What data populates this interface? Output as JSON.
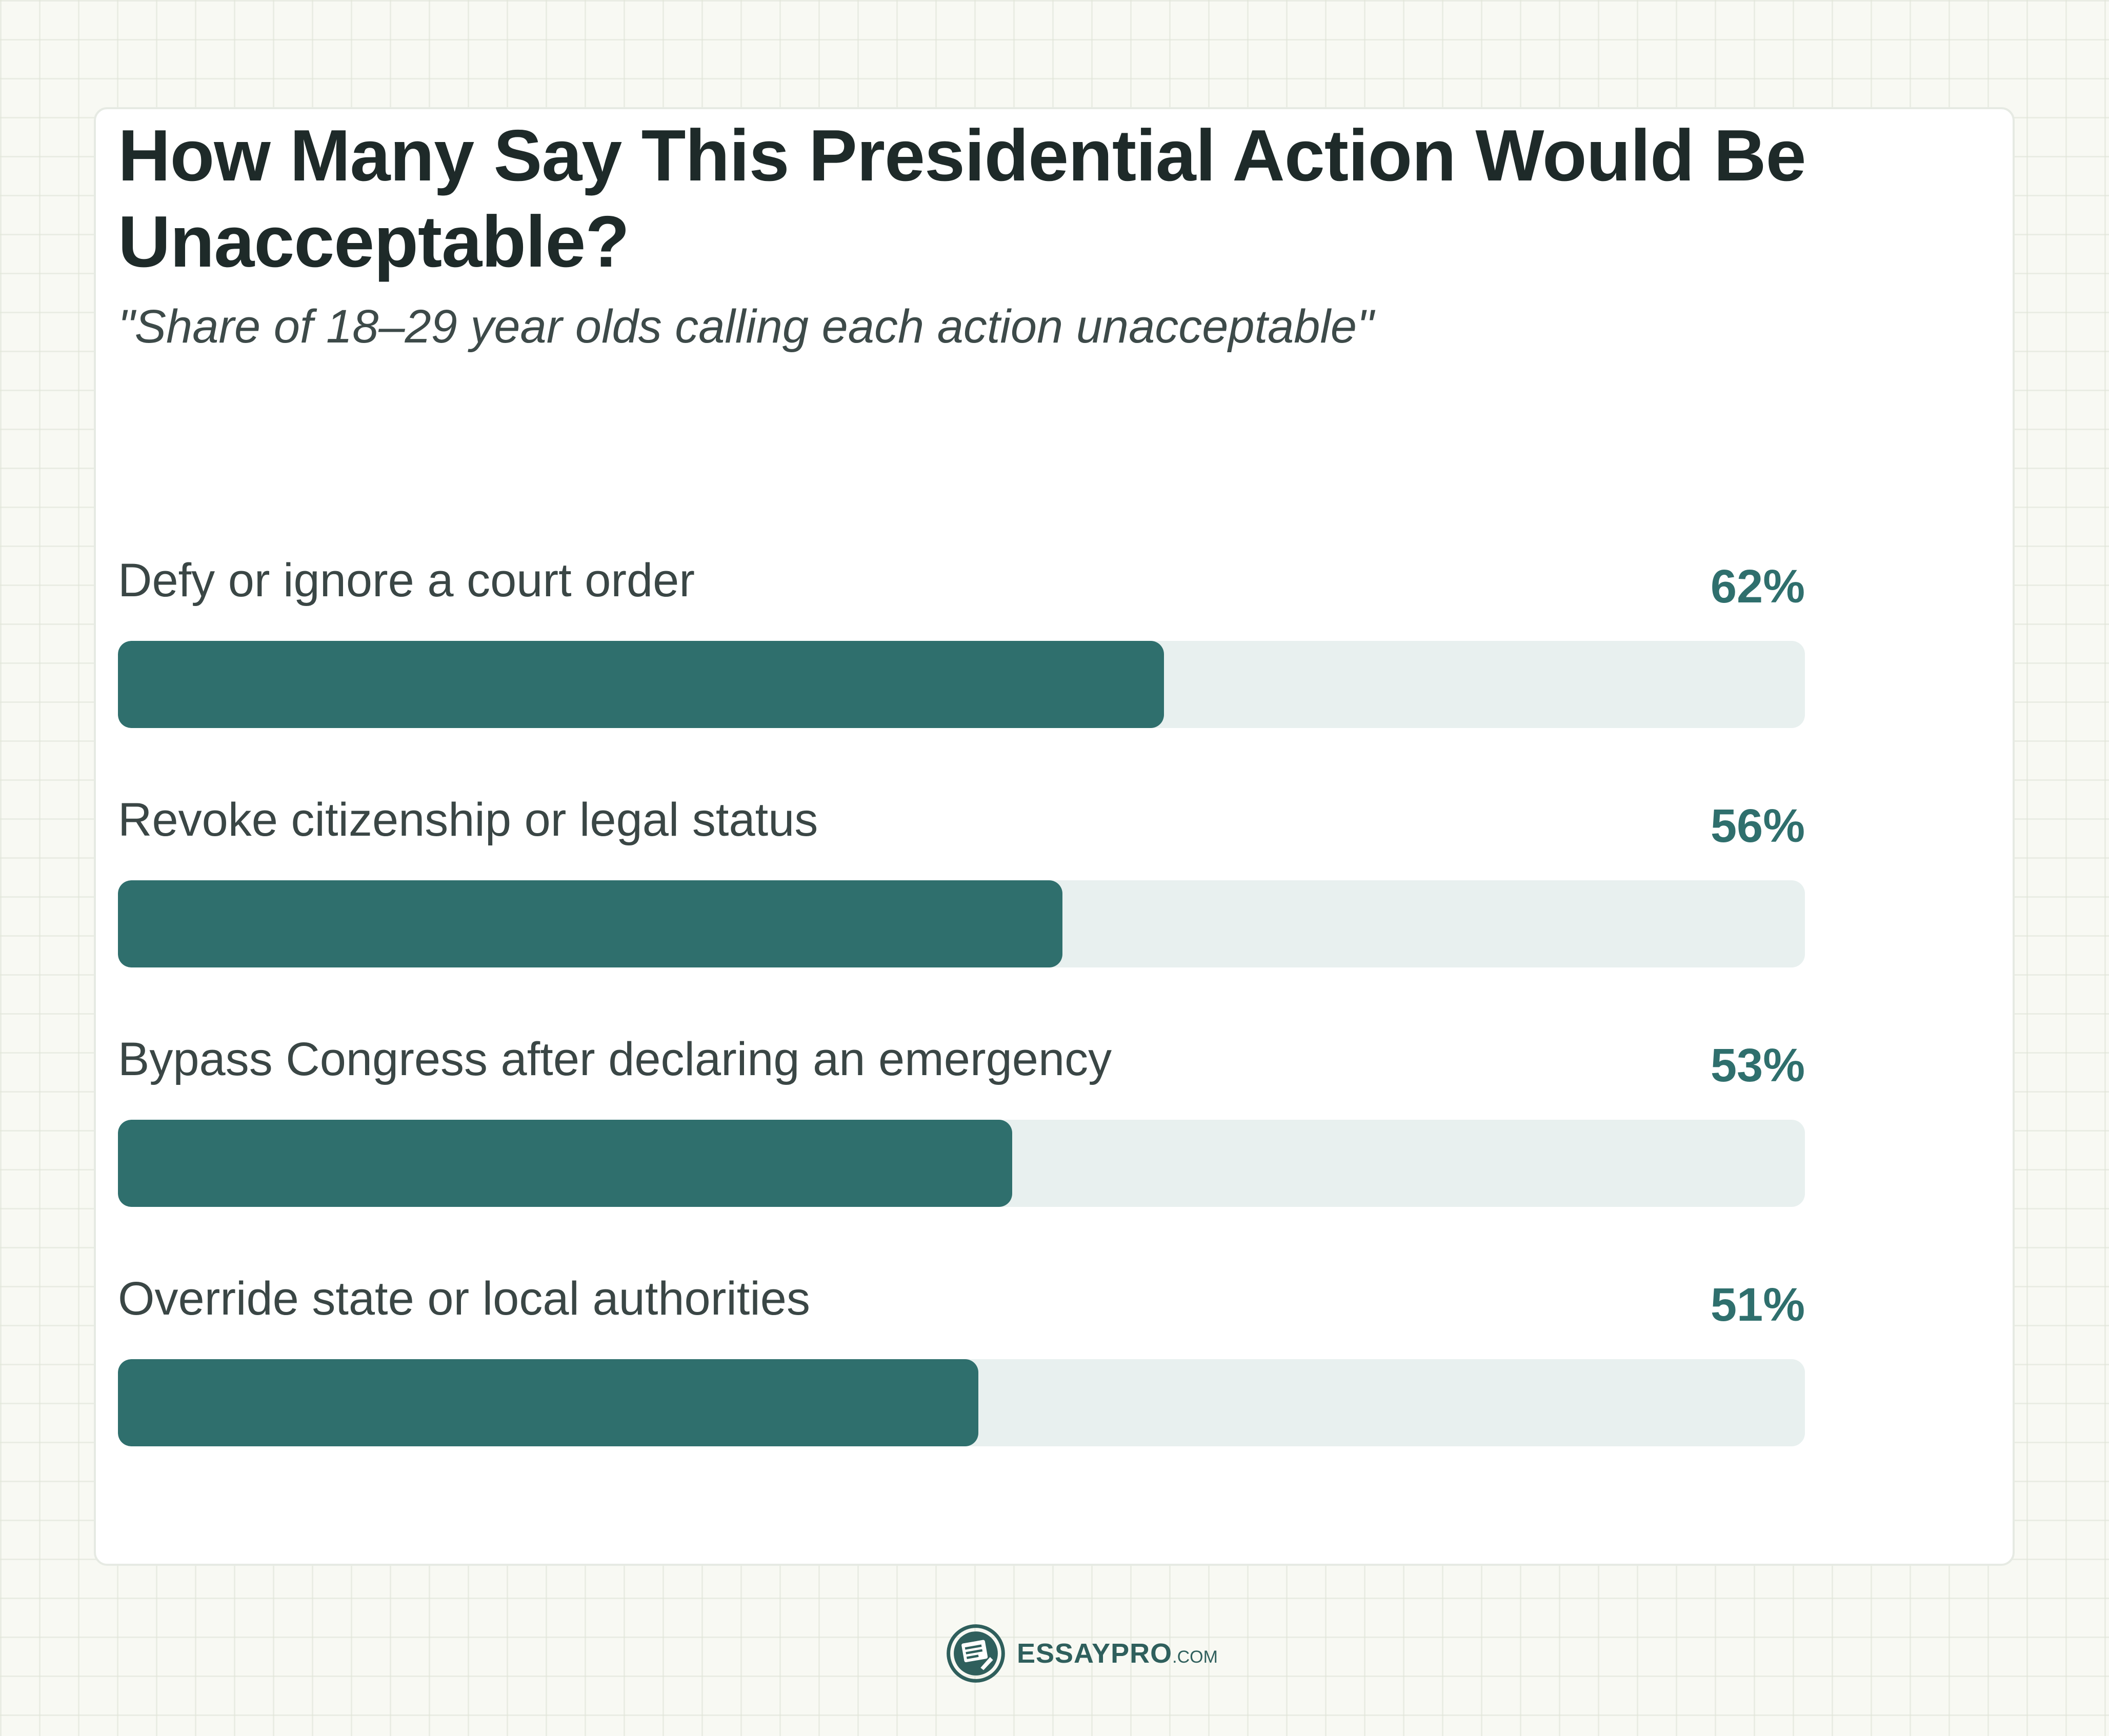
{
  "chart_data": {
    "type": "bar",
    "orientation": "horizontal",
    "title": "How Many Say This Presidential Action Would Be Unacceptable?",
    "subtitle": "\"Share of 18–29 year olds calling each action unacceptable\"",
    "categories": [
      "Defy or ignore a court order",
      "Revoke citizenship or legal status",
      "Bypass Congress after declaring an emergency",
      "Override state or local authorities"
    ],
    "values": [
      62,
      56,
      53,
      51
    ],
    "value_labels": [
      "62%",
      "56%",
      "53%",
      "51%"
    ],
    "xlim": [
      0,
      100
    ],
    "grid": false,
    "legend": "none",
    "colors": {
      "bar": "#2f6f6d",
      "track": "#e8f0ef",
      "value_text": "#2f6f6d"
    }
  },
  "brand": {
    "name": "ESSAYPRO",
    "suffix": ".COM",
    "icon": "essaypro-logo-icon"
  }
}
